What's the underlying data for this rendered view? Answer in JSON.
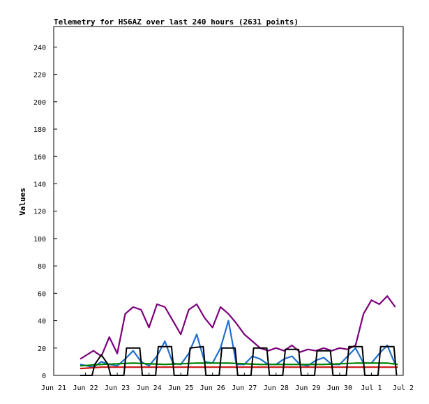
{
  "chart_data": {
    "type": "line",
    "title": "Telemetry for HS6AZ over last 240 hours (2631 points)",
    "xlabel": "",
    "ylabel": "Values",
    "ylim": [
      0,
      255
    ],
    "yticks": [
      0,
      20,
      40,
      60,
      80,
      100,
      120,
      140,
      160,
      180,
      200,
      220,
      240
    ],
    "xlim": [
      "2023-06-21",
      "2023-07-02"
    ],
    "xticks": [
      {
        "date": "2023-06-21",
        "label": "Jun 21"
      },
      {
        "date": "2023-06-22",
        "label": "Jun 22"
      },
      {
        "date": "2023-06-23",
        "label": "Jun 23"
      },
      {
        "date": "2023-06-24",
        "label": "Jun 24"
      },
      {
        "date": "2023-06-25",
        "label": "Jun 25"
      },
      {
        "date": "2023-06-26",
        "label": "Jun 26"
      },
      {
        "date": "2023-06-27",
        "label": "Jun 27"
      },
      {
        "date": "2023-06-28",
        "label": "Jun 28"
      },
      {
        "date": "2023-06-29",
        "label": "Jun 29"
      },
      {
        "date": "2023-06-30",
        "label": "Jun 30"
      },
      {
        "date": "2023-07-01",
        "label": "Jul 1"
      },
      {
        "date": "2023-07-02",
        "label": "Jul 2"
      }
    ],
    "grid": false,
    "series": [
      {
        "color": "#7b007b",
        "x": [
          "2023-06-21 20:00",
          "2023-06-22 06:00",
          "2023-06-22 12:00",
          "2023-06-22 18:00",
          "2023-06-23 00:00",
          "2023-06-23 06:00",
          "2023-06-23 12:00",
          "2023-06-23 18:00",
          "2023-06-24 00:00",
          "2023-06-24 06:00",
          "2023-06-24 12:00",
          "2023-06-24 18:00",
          "2023-06-25 00:00",
          "2023-06-25 06:00",
          "2023-06-25 12:00",
          "2023-06-25 18:00",
          "2023-06-26 00:00",
          "2023-06-26 06:00",
          "2023-06-26 12:00",
          "2023-06-26 18:00",
          "2023-06-27 00:00",
          "2023-06-27 06:00",
          "2023-06-27 12:00",
          "2023-06-27 18:00",
          "2023-06-28 00:00",
          "2023-06-28 06:00",
          "2023-06-28 12:00",
          "2023-06-28 18:00",
          "2023-06-29 00:00",
          "2023-06-29 06:00",
          "2023-06-29 12:00",
          "2023-06-29 18:00",
          "2023-06-30 00:00",
          "2023-06-30 06:00",
          "2023-06-30 12:00",
          "2023-06-30 18:00",
          "2023-07-01 00:00",
          "2023-07-01 06:00",
          "2023-07-01 12:00",
          "2023-07-01 18:00"
        ],
        "y": [
          12,
          18,
          14,
          28,
          16,
          45,
          50,
          48,
          35,
          52,
          50,
          40,
          30,
          48,
          52,
          42,
          35,
          50,
          45,
          38,
          30,
          25,
          20,
          18,
          20,
          18,
          22,
          17,
          19,
          18,
          20,
          18,
          20,
          19,
          22,
          45,
          55,
          52,
          58,
          50
        ]
      },
      {
        "color": "#1f6fcf",
        "x": [
          "2023-06-21 20:00",
          "2023-06-22 06:00",
          "2023-06-22 12:00",
          "2023-06-22 18:00",
          "2023-06-23 00:00",
          "2023-06-23 06:00",
          "2023-06-23 12:00",
          "2023-06-23 18:00",
          "2023-06-24 00:00",
          "2023-06-24 06:00",
          "2023-06-24 12:00",
          "2023-06-24 18:00",
          "2023-06-25 00:00",
          "2023-06-25 06:00",
          "2023-06-25 12:00",
          "2023-06-25 18:00",
          "2023-06-26 00:00",
          "2023-06-26 06:00",
          "2023-06-26 12:00",
          "2023-06-26 18:00",
          "2023-06-27 00:00",
          "2023-06-27 06:00",
          "2023-06-27 12:00",
          "2023-06-27 18:00",
          "2023-06-28 00:00",
          "2023-06-28 06:00",
          "2023-06-28 12:00",
          "2023-06-28 18:00",
          "2023-06-29 00:00",
          "2023-06-29 06:00",
          "2023-06-29 12:00",
          "2023-06-29 18:00",
          "2023-06-30 00:00",
          "2023-06-30 06:00",
          "2023-06-30 12:00",
          "2023-06-30 18:00",
          "2023-07-01 00:00",
          "2023-07-01 06:00",
          "2023-07-01 12:00",
          "2023-07-01 18:00"
        ],
        "y": [
          8,
          6,
          10,
          8,
          7,
          12,
          18,
          10,
          7,
          14,
          25,
          9,
          8,
          16,
          30,
          10,
          9,
          20,
          40,
          8,
          8,
          14,
          12,
          8,
          8,
          12,
          14,
          8,
          7,
          11,
          13,
          8,
          8,
          14,
          20,
          9,
          9,
          16,
          22,
          8
        ]
      },
      {
        "color": "#cc1010",
        "x": [
          "2023-06-21 20:00",
          "2023-06-22 12:00",
          "2023-06-23 12:00",
          "2023-06-24 12:00",
          "2023-06-25 12:00",
          "2023-06-26 12:00",
          "2023-06-27 12:00",
          "2023-06-28 12:00",
          "2023-06-29 12:00",
          "2023-06-30 12:00",
          "2023-07-01 12:00",
          "2023-07-01 20:00"
        ],
        "y": [
          5,
          6,
          6,
          6,
          6,
          6,
          6,
          6,
          6,
          6,
          6,
          6
        ]
      },
      {
        "color": "#008000",
        "x": [
          "2023-06-21 20:00",
          "2023-06-22 12:00",
          "2023-06-23 12:00",
          "2023-06-24 12:00",
          "2023-06-25 12:00",
          "2023-06-26 12:00",
          "2023-06-27 12:00",
          "2023-06-28 12:00",
          "2023-06-29 12:00",
          "2023-06-30 12:00",
          "2023-07-01 12:00",
          "2023-07-01 20:00"
        ],
        "y": [
          7,
          8,
          9,
          8,
          9,
          9,
          8,
          8,
          8,
          9,
          9,
          8
        ]
      },
      {
        "color": "#000000",
        "x": [
          "2023-06-21 20:00",
          "2023-06-22 05:00",
          "2023-06-22 07:00",
          "2023-06-22 12:00",
          "2023-06-22 17:00",
          "2023-06-22 19:00",
          "2023-06-23 05:00",
          "2023-06-23 07:00",
          "2023-06-23 17:00",
          "2023-06-23 19:00",
          "2023-06-24 05:00",
          "2023-06-24 07:00",
          "2023-06-24 17:00",
          "2023-06-24 19:00",
          "2023-06-25 05:00",
          "2023-06-25 07:00",
          "2023-06-25 17:00",
          "2023-06-25 19:00",
          "2023-06-26 05:00",
          "2023-06-26 07:00",
          "2023-06-26 17:00",
          "2023-06-26 19:00",
          "2023-06-27 05:00",
          "2023-06-27 07:00",
          "2023-06-27 17:00",
          "2023-06-27 19:00",
          "2023-06-28 05:00",
          "2023-06-28 07:00",
          "2023-06-28 17:00",
          "2023-06-28 19:00",
          "2023-06-29 05:00",
          "2023-06-29 07:00",
          "2023-06-29 17:00",
          "2023-06-29 19:00",
          "2023-06-30 05:00",
          "2023-06-30 07:00",
          "2023-06-30 17:00",
          "2023-06-30 19:00",
          "2023-07-01 05:00",
          "2023-07-01 07:00",
          "2023-07-01 17:00",
          "2023-07-01 19:00"
        ],
        "y": [
          0,
          0,
          8,
          15,
          8,
          0,
          0,
          20,
          20,
          0,
          0,
          21,
          21,
          0,
          0,
          20,
          21,
          0,
          0,
          20,
          20,
          0,
          0,
          20,
          20,
          0,
          0,
          19,
          19,
          0,
          0,
          18,
          18,
          0,
          0,
          21,
          21,
          0,
          0,
          21,
          21,
          0
        ]
      }
    ]
  }
}
